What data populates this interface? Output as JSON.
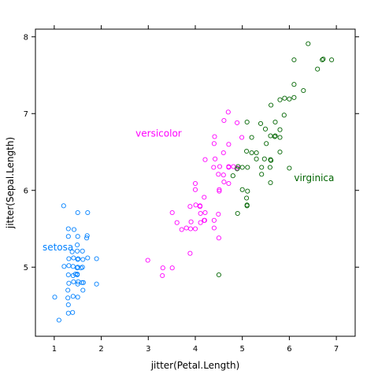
{
  "chart_data": {
    "type": "scatter",
    "title": "",
    "xlabel": "jitter(Petal.Length)",
    "ylabel": "jitter(Sepal.Length)",
    "xlim": [
      0.6,
      7.4
    ],
    "ylim": [
      4.1,
      8.1
    ],
    "xticks": [
      1,
      2,
      3,
      4,
      5,
      6,
      7
    ],
    "yticks": [
      5,
      6,
      7,
      8
    ],
    "grid": false,
    "legend": "direct labels inside plot",
    "series": [
      {
        "name": "setosa",
        "color": "#0080ff",
        "label_position": [
          0.75,
          5.26
        ],
        "points": [
          [
            1.2,
            5.8
          ],
          [
            1.5,
            5.71
          ],
          [
            1.71,
            5.71
          ],
          [
            1.3,
            5.5
          ],
          [
            1.42,
            5.49
          ],
          [
            1.3,
            5.4
          ],
          [
            1.5,
            5.4
          ],
          [
            1.7,
            5.41
          ],
          [
            1.69,
            5.38
          ],
          [
            1.49,
            5.29
          ],
          [
            1.38,
            5.2
          ],
          [
            1.49,
            5.21
          ],
          [
            1.31,
            5.11
          ],
          [
            1.41,
            5.12
          ],
          [
            1.5,
            5.1
          ],
          [
            1.61,
            5.1
          ],
          [
            1.71,
            5.12
          ],
          [
            1.9,
            5.11
          ],
          [
            1.5,
            5.0
          ],
          [
            1.6,
            5.0
          ],
          [
            1.4,
            5.01
          ],
          [
            1.21,
            5.01
          ],
          [
            1.31,
            5.02
          ],
          [
            1.49,
            4.99
          ],
          [
            1.57,
            4.99
          ],
          [
            1.45,
            4.91
          ],
          [
            1.49,
            4.9
          ],
          [
            1.4,
            4.89
          ],
          [
            1.3,
            4.9
          ],
          [
            1.41,
            4.81
          ],
          [
            1.59,
            4.8
          ],
          [
            1.62,
            4.8
          ],
          [
            1.9,
            4.78
          ],
          [
            1.31,
            4.79
          ],
          [
            1.5,
            4.78
          ],
          [
            1.29,
            4.7
          ],
          [
            1.61,
            4.7
          ],
          [
            1.4,
            4.62
          ],
          [
            1.5,
            4.61
          ],
          [
            1.29,
            4.6
          ],
          [
            1.01,
            4.61
          ],
          [
            1.3,
            4.51
          ],
          [
            1.39,
            4.41
          ],
          [
            1.3,
            4.4
          ],
          [
            1.1,
            4.31
          ],
          [
            1.51,
            5.11
          ],
          [
            1.6,
            5.21
          ],
          [
            1.49,
            4.91
          ],
          [
            1.51,
            4.81
          ]
        ]
      },
      {
        "name": "versicolor",
        "color": "#ff00ff",
        "label_position": [
          2.73,
          6.74
        ],
        "points": [
          [
            4.7,
            7.02
          ],
          [
            4.61,
            6.91
          ],
          [
            4.89,
            6.88
          ],
          [
            4.41,
            6.7
          ],
          [
            4.99,
            6.69
          ],
          [
            4.4,
            6.61
          ],
          [
            4.71,
            6.6
          ],
          [
            4.6,
            6.49
          ],
          [
            4.42,
            6.41
          ],
          [
            4.21,
            6.4
          ],
          [
            4.52,
            6.31
          ],
          [
            4.71,
            6.31
          ],
          [
            4.9,
            6.29
          ],
          [
            4.39,
            6.3
          ],
          [
            4.0,
            6.09
          ],
          [
            4.61,
            6.11
          ],
          [
            4.71,
            6.09
          ],
          [
            4.49,
            6.21
          ],
          [
            4.0,
            6.01
          ],
          [
            4.51,
            6.01
          ],
          [
            4.51,
            5.99
          ],
          [
            4.19,
            5.91
          ],
          [
            4.01,
            5.81
          ],
          [
            3.89,
            5.79
          ],
          [
            4.1,
            5.79
          ],
          [
            4.21,
            5.71
          ],
          [
            4.49,
            5.69
          ],
          [
            3.51,
            5.71
          ],
          [
            4.19,
            5.61
          ],
          [
            3.91,
            5.59
          ],
          [
            3.61,
            5.58
          ],
          [
            4.4,
            5.51
          ],
          [
            4.0,
            5.5
          ],
          [
            3.71,
            5.49
          ],
          [
            3.81,
            5.51
          ],
          [
            4.11,
            5.58
          ],
          [
            4.4,
            5.61
          ],
          [
            4.5,
            5.38
          ],
          [
            3.89,
            5.18
          ],
          [
            2.99,
            5.09
          ],
          [
            3.31,
            4.99
          ],
          [
            3.51,
            4.99
          ],
          [
            3.3,
            4.89
          ],
          [
            4.71,
            6.3
          ],
          [
            3.9,
            5.5
          ],
          [
            4.6,
            6.2
          ],
          [
            4.11,
            5.7
          ],
          [
            4.2,
            5.61
          ],
          [
            4.1,
            5.8
          ],
          [
            4.81,
            6.31
          ]
        ]
      },
      {
        "name": "virginica",
        "color": "#006400",
        "label_position": [
          6.1,
          6.16
        ],
        "points": [
          [
            6.4,
            7.91
          ],
          [
            6.1,
            7.7
          ],
          [
            6.72,
            7.71
          ],
          [
            6.9,
            7.7
          ],
          [
            6.7,
            7.7
          ],
          [
            6.6,
            7.58
          ],
          [
            6.1,
            7.38
          ],
          [
            6.3,
            7.3
          ],
          [
            5.9,
            7.2
          ],
          [
            6.0,
            7.19
          ],
          [
            6.1,
            7.21
          ],
          [
            5.8,
            7.18
          ],
          [
            5.61,
            7.11
          ],
          [
            5.89,
            6.98
          ],
          [
            5.7,
            6.89
          ],
          [
            5.1,
            6.89
          ],
          [
            5.39,
            6.87
          ],
          [
            5.8,
            6.79
          ],
          [
            5.49,
            6.8
          ],
          [
            5.7,
            6.71
          ],
          [
            5.69,
            6.7
          ],
          [
            5.8,
            6.69
          ],
          [
            5.6,
            6.71
          ],
          [
            5.2,
            6.69
          ],
          [
            5.51,
            6.61
          ],
          [
            5.3,
            6.49
          ],
          [
            5.8,
            6.5
          ],
          [
            5.2,
            6.49
          ],
          [
            5.09,
            6.51
          ],
          [
            5.47,
            6.41
          ],
          [
            5.3,
            6.41
          ],
          [
            5.6,
            6.4
          ],
          [
            5.61,
            6.39
          ],
          [
            5.41,
            6.3
          ],
          [
            5.0,
            6.3
          ],
          [
            5.59,
            6.3
          ],
          [
            5.11,
            6.3
          ],
          [
            6.0,
            6.29
          ],
          [
            4.89,
            6.28
          ],
          [
            4.91,
            6.31
          ],
          [
            4.8,
            6.19
          ],
          [
            5.41,
            6.21
          ],
          [
            5.6,
            6.1
          ],
          [
            5.11,
            5.99
          ],
          [
            5.0,
            6.01
          ],
          [
            5.09,
            5.9
          ],
          [
            5.1,
            5.81
          ],
          [
            5.1,
            5.8
          ],
          [
            4.9,
            5.7
          ],
          [
            4.5,
            4.9
          ]
        ]
      }
    ]
  }
}
